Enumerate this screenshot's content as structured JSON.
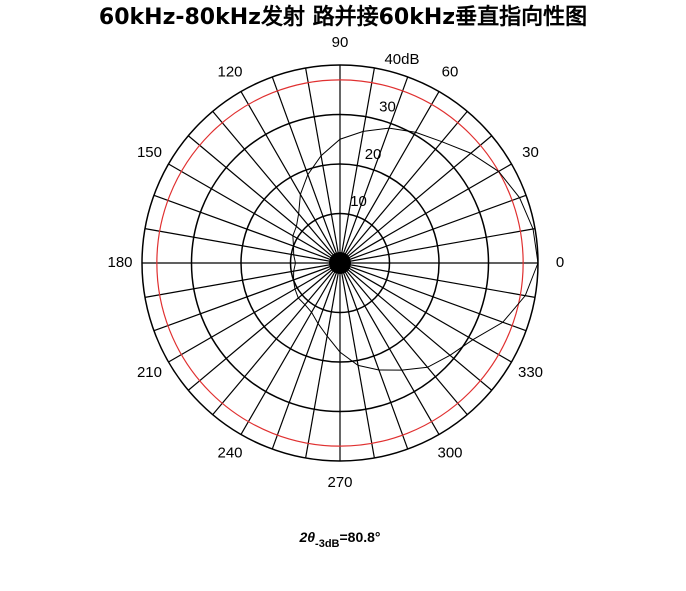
{
  "chart_data": {
    "type": "polar",
    "title": "60kHz-80kHz发射 路并接60kHz垂直指向性图",
    "x": [
      0,
      10,
      20,
      30,
      40,
      50,
      60,
      70,
      80,
      90,
      100,
      110,
      120,
      130,
      140,
      150,
      160,
      170,
      180,
      190,
      200,
      210,
      220,
      230,
      240,
      250,
      260,
      270,
      280,
      290,
      300,
      310,
      320,
      330,
      340,
      350
    ],
    "series": [
      {
        "color": "#000000",
        "values": [
          40,
          39.6,
          38.6,
          37,
          34.5,
          32,
          30.5,
          29,
          27,
          25,
          22,
          19,
          16,
          13,
          11.5,
          11,
          10,
          9.5,
          9,
          9.5,
          10,
          10.5,
          11,
          11,
          11.5,
          13,
          15,
          18,
          21,
          23,
          25,
          27.5,
          29,
          31,
          35,
          38
        ]
      }
    ],
    "rlim": [
      0,
      40
    ],
    "rticks": [
      10,
      20,
      30,
      {
        "value": 40,
        "label": "40dB"
      }
    ],
    "thetaticks": [
      0,
      30,
      60,
      90,
      120,
      150,
      180,
      210,
      240,
      270,
      300,
      330
    ],
    "reference_circle": {
      "value": 37,
      "color": "#e03030"
    },
    "annotation": {
      "base": "2θ",
      "sub": "-3dB",
      "rest": "=80.8°"
    }
  }
}
